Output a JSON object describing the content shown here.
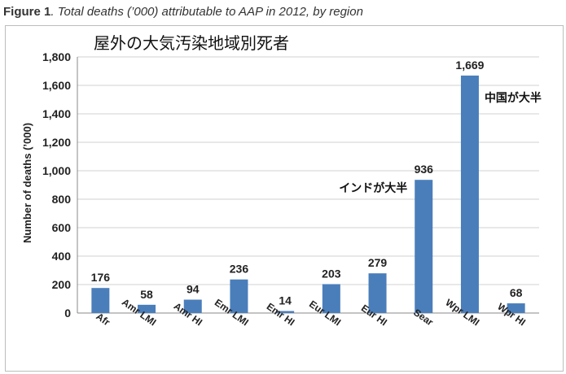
{
  "figure": {
    "label": "Figure 1",
    "caption": ". Total deaths (’000) attributable to AAP in 2012, by region"
  },
  "chart_data": {
    "type": "bar",
    "title": "屋外の大気汚染地域別死者",
    "xlabel": "",
    "ylabel": "Number of deaths (’000)",
    "ylim": [
      0,
      1800
    ],
    "yticks": [
      "0",
      "200",
      "400",
      "600",
      "800",
      "1,000",
      "1,200",
      "1,400",
      "1,600",
      "1,800"
    ],
    "categories": [
      "Afr",
      "Amr LMI",
      "Amr HI",
      "Emr LMI",
      "Emr HI",
      "Eur LMI",
      "Eur HI",
      "Sear",
      "Wpr LMI",
      "Wpr HI"
    ],
    "values": [
      176,
      58,
      94,
      236,
      14,
      203,
      279,
      936,
      1669,
      68
    ],
    "data_labels": [
      "176",
      "58",
      "94",
      "236",
      "14",
      "203",
      "279",
      "936",
      "1,669",
      "68"
    ],
    "grid": true,
    "bar_color": "#4a7ebb",
    "annotations": [
      {
        "text": "インドが大半",
        "category": "Sear"
      },
      {
        "text": "中国が大半",
        "category": "Wpr LMI"
      }
    ]
  }
}
